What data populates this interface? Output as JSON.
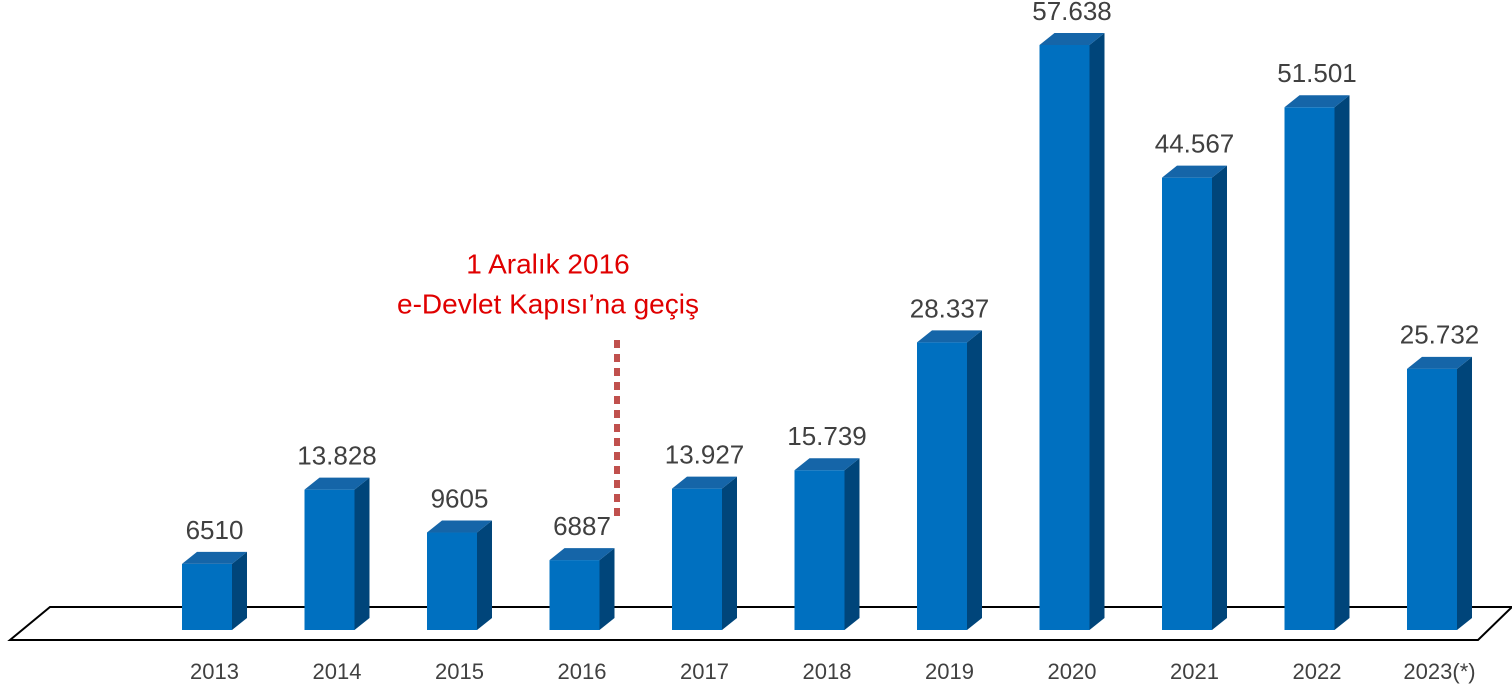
{
  "chart_data": {
    "type": "bar3d",
    "categories": [
      "2013",
      "2014",
      "2015",
      "2016",
      "2017",
      "2018",
      "2019",
      "2020",
      "2021",
      "2022",
      "2023(*)"
    ],
    "values": [
      6510,
      13828,
      9605,
      6887,
      13927,
      15739,
      28337,
      57638,
      44567,
      51501,
      25732
    ],
    "value_labels": [
      "6510",
      "13.828",
      "9605",
      "6887",
      "13.927",
      "15.739",
      "28.337",
      "57.638",
      "44.567",
      "51.501",
      "25.732"
    ],
    "color": "#0070c0",
    "annotation": [
      "1 Aralık 2016",
      "e-Devlet Kapısı’na geçiş"
    ]
  }
}
